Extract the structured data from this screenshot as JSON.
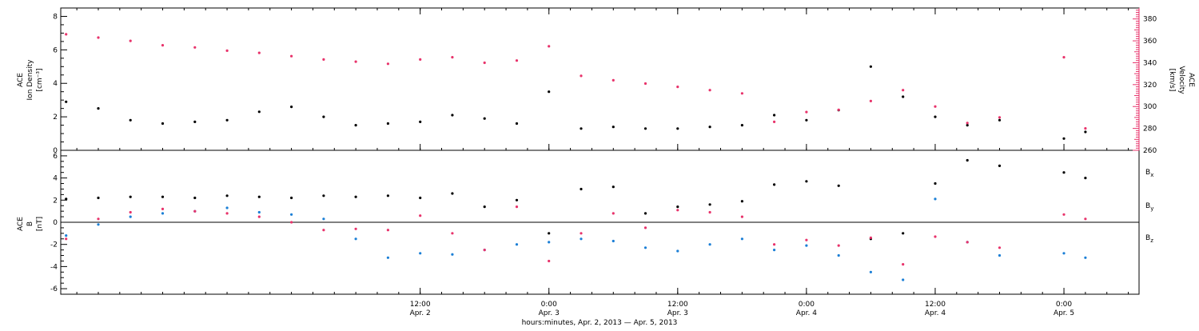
{
  "colors": {
    "black": "#000000",
    "pink": "#e8336b",
    "blue": "#1b7fd6"
  },
  "xaxis": {
    "title": "hours:minutes, Apr.  2, 2013 — Apr.  5, 2013",
    "range": [
      "2013-04-01T02:30",
      "2013-04-05T07:00"
    ],
    "ticks": [
      {
        "t": "2013-04-02T12:00",
        "time": "12:00",
        "date": "Apr. 2"
      },
      {
        "t": "2013-04-03T00:00",
        "time": "0:00",
        "date": "Apr. 3"
      },
      {
        "t": "2013-04-03T12:00",
        "time": "12:00",
        "date": "Apr. 3"
      },
      {
        "t": "2013-04-04T00:00",
        "time": "0:00",
        "date": "Apr. 4"
      },
      {
        "t": "2013-04-04T12:00",
        "time": "12:00",
        "date": "Apr. 4"
      },
      {
        "t": "2013-04-05T00:00",
        "time": "0:00",
        "date": "Apr. 5"
      }
    ]
  },
  "panel1": {
    "ylabel_left": [
      "ACE",
      "Ion Density",
      "[cm⁻³]"
    ],
    "ylabel_right": [
      "ACE",
      "Velocity",
      "[km/s]"
    ],
    "left_ticks": [
      "0",
      "2",
      "4",
      "6",
      "8"
    ],
    "right_ticks": [
      "260",
      "280",
      "300",
      "320",
      "340",
      "360",
      "380"
    ]
  },
  "panel2": {
    "ylabel_left": [
      "ACE",
      "B",
      "[nT]"
    ],
    "ticks": [
      "-6",
      "-4",
      "-2",
      "0",
      "2",
      "4",
      "6"
    ],
    "legend": [
      {
        "label": "Bx",
        "base": "B",
        "sub": "x",
        "color": "#000000"
      },
      {
        "label": "By",
        "base": "B",
        "sub": "y",
        "color": "#1b7fd6"
      },
      {
        "label": "Bz",
        "base": "B",
        "sub": "z",
        "color": "#e8336b"
      }
    ]
  },
  "chart_data": [
    {
      "type": "scatter",
      "xlabel": "hours:minutes, Apr.  2, 2013 — Apr.  5, 2013",
      "ylabel": "ACE Ion Density [cm⁻³]",
      "y2label": "ACE Velocity [km/s]",
      "ylim": [
        0,
        8.5
      ],
      "y2lim": [
        260,
        390
      ],
      "series": [
        {
          "color": "#000000",
          "axis": "left",
          "points": [
            [
              "2013-04-01T03:00",
              2.9
            ],
            [
              "2013-04-01T06:00",
              2.5
            ],
            [
              "2013-04-01T09:00",
              1.8
            ],
            [
              "2013-04-01T12:00",
              1.6
            ],
            [
              "2013-04-01T15:00",
              1.7
            ],
            [
              "2013-04-01T18:00",
              1.8
            ],
            [
              "2013-04-01T21:00",
              2.3
            ],
            [
              "2013-04-02T00:00",
              2.6
            ],
            [
              "2013-04-02T03:00",
              2.0
            ],
            [
              "2013-04-02T06:00",
              1.5
            ],
            [
              "2013-04-02T09:00",
              1.6
            ],
            [
              "2013-04-02T12:00",
              1.7
            ],
            [
              "2013-04-02T15:00",
              2.1
            ],
            [
              "2013-04-02T18:00",
              1.9
            ],
            [
              "2013-04-02T21:00",
              1.6
            ],
            [
              "2013-04-03T00:00",
              3.5
            ],
            [
              "2013-04-03T03:00",
              1.3
            ],
            [
              "2013-04-03T06:00",
              1.4
            ],
            [
              "2013-04-03T09:00",
              1.3
            ],
            [
              "2013-04-03T12:00",
              1.3
            ],
            [
              "2013-04-03T15:00",
              1.4
            ],
            [
              "2013-04-03T18:00",
              1.5
            ],
            [
              "2013-04-03T21:00",
              2.1
            ],
            [
              "2013-04-04T00:00",
              1.8
            ],
            [
              "2013-04-04T03:00",
              2.4
            ],
            [
              "2013-04-04T06:00",
              5.0
            ],
            [
              "2013-04-04T09:00",
              3.2
            ],
            [
              "2013-04-04T12:00",
              2.0
            ],
            [
              "2013-04-04T15:00",
              1.5
            ],
            [
              "2013-04-04T18:00",
              1.8
            ],
            [
              "2013-04-05T00:00",
              0.7
            ],
            [
              "2013-04-05T02:00",
              1.1
            ]
          ]
        },
        {
          "color": "#e8336b",
          "axis": "right",
          "points": [
            [
              "2013-04-01T03:00",
              366
            ],
            [
              "2013-04-01T06:00",
              363
            ],
            [
              "2013-04-01T09:00",
              360
            ],
            [
              "2013-04-01T12:00",
              356
            ],
            [
              "2013-04-01T15:00",
              354
            ],
            [
              "2013-04-01T18:00",
              351
            ],
            [
              "2013-04-01T21:00",
              349
            ],
            [
              "2013-04-02T00:00",
              346
            ],
            [
              "2013-04-02T03:00",
              343
            ],
            [
              "2013-04-02T06:00",
              341
            ],
            [
              "2013-04-02T09:00",
              339
            ],
            [
              "2013-04-02T12:00",
              343
            ],
            [
              "2013-04-02T15:00",
              345
            ],
            [
              "2013-04-02T18:00",
              340
            ],
            [
              "2013-04-02T21:00",
              342
            ],
            [
              "2013-04-03T00:00",
              355
            ],
            [
              "2013-04-03T03:00",
              328
            ],
            [
              "2013-04-03T06:00",
              324
            ],
            [
              "2013-04-03T09:00",
              321
            ],
            [
              "2013-04-03T12:00",
              318
            ],
            [
              "2013-04-03T15:00",
              315
            ],
            [
              "2013-04-03T18:00",
              312
            ],
            [
              "2013-04-03T21:00",
              286
            ],
            [
              "2013-04-04T00:00",
              295
            ],
            [
              "2013-04-04T03:00",
              297
            ],
            [
              "2013-04-04T06:00",
              305
            ],
            [
              "2013-04-04T09:00",
              315
            ],
            [
              "2013-04-04T12:00",
              300
            ],
            [
              "2013-04-04T15:00",
              285
            ],
            [
              "2013-04-04T18:00",
              290
            ],
            [
              "2013-04-05T00:00",
              345
            ],
            [
              "2013-04-05T02:00",
              280
            ]
          ]
        }
      ]
    },
    {
      "type": "scatter",
      "xlabel": "hours:minutes, Apr.  2, 2013 — Apr.  5, 2013",
      "ylabel": "ACE B [nT]",
      "ylim": [
        -6.5,
        6.5
      ],
      "series": [
        {
          "name": "Bx",
          "color": "#000000",
          "points": [
            [
              "2013-04-01T03:00",
              2.1
            ],
            [
              "2013-04-01T06:00",
              2.2
            ],
            [
              "2013-04-01T09:00",
              2.3
            ],
            [
              "2013-04-01T12:00",
              2.3
            ],
            [
              "2013-04-01T15:00",
              2.2
            ],
            [
              "2013-04-01T18:00",
              2.4
            ],
            [
              "2013-04-01T21:00",
              2.3
            ],
            [
              "2013-04-02T00:00",
              2.2
            ],
            [
              "2013-04-02T03:00",
              2.4
            ],
            [
              "2013-04-02T06:00",
              2.3
            ],
            [
              "2013-04-02T09:00",
              2.4
            ],
            [
              "2013-04-02T12:00",
              2.2
            ],
            [
              "2013-04-02T15:00",
              2.6
            ],
            [
              "2013-04-02T18:00",
              1.4
            ],
            [
              "2013-04-02T21:00",
              2.0
            ],
            [
              "2013-04-03T00:00",
              -1.0
            ],
            [
              "2013-04-03T03:00",
              3.0
            ],
            [
              "2013-04-03T06:00",
              3.2
            ],
            [
              "2013-04-03T09:00",
              0.8
            ],
            [
              "2013-04-03T12:00",
              1.4
            ],
            [
              "2013-04-03T15:00",
              1.6
            ],
            [
              "2013-04-03T18:00",
              1.9
            ],
            [
              "2013-04-03T21:00",
              3.4
            ],
            [
              "2013-04-04T00:00",
              3.7
            ],
            [
              "2013-04-04T03:00",
              3.3
            ],
            [
              "2013-04-04T06:00",
              -1.5
            ],
            [
              "2013-04-04T09:00",
              -1.0
            ],
            [
              "2013-04-04T12:00",
              3.5
            ],
            [
              "2013-04-04T15:00",
              5.6
            ],
            [
              "2013-04-04T18:00",
              5.1
            ],
            [
              "2013-04-05T00:00",
              4.5
            ],
            [
              "2013-04-05T02:00",
              4.0
            ]
          ]
        },
        {
          "name": "By",
          "color": "#1b7fd6",
          "points": [
            [
              "2013-04-01T03:00",
              -1.2
            ],
            [
              "2013-04-01T06:00",
              -0.2
            ],
            [
              "2013-04-01T09:00",
              0.5
            ],
            [
              "2013-04-01T12:00",
              0.8
            ],
            [
              "2013-04-01T15:00",
              1.0
            ],
            [
              "2013-04-01T18:00",
              1.3
            ],
            [
              "2013-04-01T21:00",
              0.9
            ],
            [
              "2013-04-02T00:00",
              0.7
            ],
            [
              "2013-04-02T03:00",
              0.3
            ],
            [
              "2013-04-02T06:00",
              -1.5
            ],
            [
              "2013-04-02T09:00",
              -3.2
            ],
            [
              "2013-04-02T12:00",
              -2.8
            ],
            [
              "2013-04-02T15:00",
              -2.9
            ],
            [
              "2013-04-02T18:00",
              -2.5
            ],
            [
              "2013-04-02T21:00",
              -2.0
            ],
            [
              "2013-04-03T00:00",
              -1.8
            ],
            [
              "2013-04-03T03:00",
              -1.5
            ],
            [
              "2013-04-03T06:00",
              -1.7
            ],
            [
              "2013-04-03T09:00",
              -2.3
            ],
            [
              "2013-04-03T12:00",
              -2.6
            ],
            [
              "2013-04-03T15:00",
              -2.0
            ],
            [
              "2013-04-03T18:00",
              -1.5
            ],
            [
              "2013-04-03T21:00",
              -2.5
            ],
            [
              "2013-04-04T00:00",
              -2.1
            ],
            [
              "2013-04-04T03:00",
              -3.0
            ],
            [
              "2013-04-04T06:00",
              -4.5
            ],
            [
              "2013-04-04T09:00",
              -5.2
            ],
            [
              "2013-04-04T12:00",
              2.1
            ],
            [
              "2013-04-04T15:00",
              -1.8
            ],
            [
              "2013-04-04T18:00",
              -3.0
            ],
            [
              "2013-04-05T00:00",
              -2.8
            ],
            [
              "2013-04-05T02:00",
              -3.2
            ]
          ]
        },
        {
          "name": "Bz",
          "color": "#e8336b",
          "points": [
            [
              "2013-04-01T03:00",
              -1.5
            ],
            [
              "2013-04-01T06:00",
              0.3
            ],
            [
              "2013-04-01T09:00",
              0.9
            ],
            [
              "2013-04-01T12:00",
              1.2
            ],
            [
              "2013-04-01T15:00",
              1.0
            ],
            [
              "2013-04-01T18:00",
              0.8
            ],
            [
              "2013-04-01T21:00",
              0.5
            ],
            [
              "2013-04-02T00:00",
              0.0
            ],
            [
              "2013-04-02T03:00",
              -0.7
            ],
            [
              "2013-04-02T06:00",
              -0.6
            ],
            [
              "2013-04-02T09:00",
              -0.7
            ],
            [
              "2013-04-02T12:00",
              0.6
            ],
            [
              "2013-04-02T15:00",
              -1.0
            ],
            [
              "2013-04-02T18:00",
              -2.5
            ],
            [
              "2013-04-02T21:00",
              1.4
            ],
            [
              "2013-04-03T00:00",
              -3.5
            ],
            [
              "2013-04-03T03:00",
              -1.0
            ],
            [
              "2013-04-03T06:00",
              0.8
            ],
            [
              "2013-04-03T09:00",
              -0.5
            ],
            [
              "2013-04-03T12:00",
              1.1
            ],
            [
              "2013-04-03T15:00",
              0.9
            ],
            [
              "2013-04-03T18:00",
              0.5
            ],
            [
              "2013-04-03T21:00",
              -2.0
            ],
            [
              "2013-04-04T00:00",
              -1.6
            ],
            [
              "2013-04-04T03:00",
              -2.1
            ],
            [
              "2013-04-04T06:00",
              -1.4
            ],
            [
              "2013-04-04T09:00",
              -3.8
            ],
            [
              "2013-04-04T12:00",
              -1.3
            ],
            [
              "2013-04-04T15:00",
              -1.8
            ],
            [
              "2013-04-04T18:00",
              -2.3
            ],
            [
              "2013-04-05T00:00",
              0.7
            ],
            [
              "2013-04-05T02:00",
              0.3
            ]
          ]
        }
      ]
    }
  ]
}
